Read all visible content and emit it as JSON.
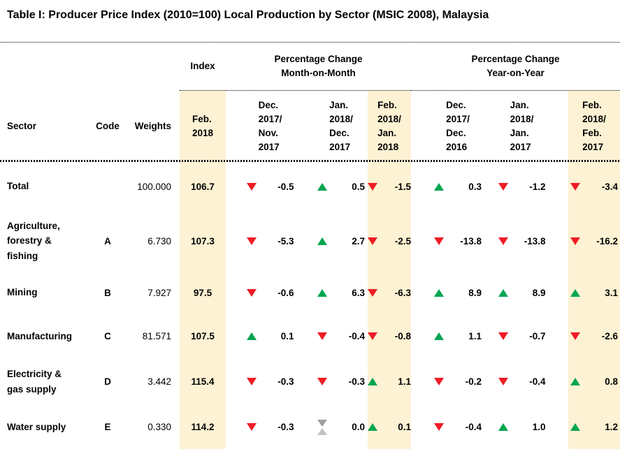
{
  "title": "Table I: Producer Price Index (2010=100) Local Production by Sector (MSIC 2008), Malaysia",
  "colors": {
    "highlight": "#fdf2d3",
    "up": "#00a550",
    "down": "#ee1c25",
    "neutral_dark": "#9e9e9e",
    "neutral_light": "#c3c3c3"
  },
  "header": {
    "index_group": "Index",
    "mom_group": "Percentage Change\nMonth-on-Month",
    "yoy_group": "Percentage Change\nYear-on-Year",
    "sector": "Sector",
    "code": "Code",
    "weights": "Weights",
    "index_period": "Feb.\n2018",
    "mom_periods": [
      "Dec.\n2017/\nNov.\n2017",
      "Jan.\n2018/\nDec.\n2017",
      "Feb.\n2018/\nJan.\n2018"
    ],
    "yoy_periods": [
      "Dec.\n2017/\nDec.\n2016",
      "Jan.\n2018/\nJan.\n2017",
      "Feb.\n2018/\nFeb.\n2017"
    ]
  },
  "rows": [
    {
      "sector": "Total",
      "code": "",
      "weights": "100.000",
      "index": "106.7",
      "changes": [
        {
          "dir": "down",
          "value": "-0.5"
        },
        {
          "dir": "up",
          "value": "0.5"
        },
        {
          "dir": "down",
          "value": "-1.5"
        },
        {
          "dir": "up",
          "value": "0.3"
        },
        {
          "dir": "down",
          "value": "-1.2"
        },
        {
          "dir": "down",
          "value": "-3.4"
        }
      ]
    },
    {
      "sector": "Agriculture, forestry & fishing",
      "code": "A",
      "weights": "6.730",
      "index": "107.3",
      "changes": [
        {
          "dir": "down",
          "value": "-5.3"
        },
        {
          "dir": "up",
          "value": "2.7"
        },
        {
          "dir": "down",
          "value": "-2.5"
        },
        {
          "dir": "down",
          "value": "-13.8"
        },
        {
          "dir": "down",
          "value": "-13.8"
        },
        {
          "dir": "down",
          "value": "-16.2"
        }
      ]
    },
    {
      "sector": "Mining",
      "code": "B",
      "weights": "7.927",
      "index": "97.5",
      "changes": [
        {
          "dir": "down",
          "value": "-0.6"
        },
        {
          "dir": "up",
          "value": "6.3"
        },
        {
          "dir": "down",
          "value": "-6.3"
        },
        {
          "dir": "up",
          "value": "8.9"
        },
        {
          "dir": "up",
          "value": "8.9"
        },
        {
          "dir": "up",
          "value": "3.1"
        }
      ]
    },
    {
      "sector": "Manufacturing",
      "code": "C",
      "weights": "81.571",
      "index": "107.5",
      "changes": [
        {
          "dir": "up",
          "value": "0.1"
        },
        {
          "dir": "down",
          "value": "-0.4"
        },
        {
          "dir": "down",
          "value": "-0.8"
        },
        {
          "dir": "up",
          "value": "1.1"
        },
        {
          "dir": "down",
          "value": "-0.7"
        },
        {
          "dir": "down",
          "value": "-2.6"
        }
      ]
    },
    {
      "sector": "Electricity & gas supply",
      "code": "D",
      "weights": "3.442",
      "index": "115.4",
      "changes": [
        {
          "dir": "down",
          "value": "-0.3"
        },
        {
          "dir": "down",
          "value": "-0.3"
        },
        {
          "dir": "up",
          "value": "1.1"
        },
        {
          "dir": "down",
          "value": "-0.2"
        },
        {
          "dir": "down",
          "value": "-0.4"
        },
        {
          "dir": "up",
          "value": "0.8"
        }
      ]
    },
    {
      "sector": "Water supply",
      "code": "E",
      "weights": "0.330",
      "index": "114.2",
      "changes": [
        {
          "dir": "down",
          "value": "-0.3"
        },
        {
          "dir": "neutral",
          "value": "0.0"
        },
        {
          "dir": "up",
          "value": "0.1"
        },
        {
          "dir": "down",
          "value": "-0.4"
        },
        {
          "dir": "up",
          "value": "1.0"
        },
        {
          "dir": "up",
          "value": "1.2"
        }
      ]
    }
  ]
}
